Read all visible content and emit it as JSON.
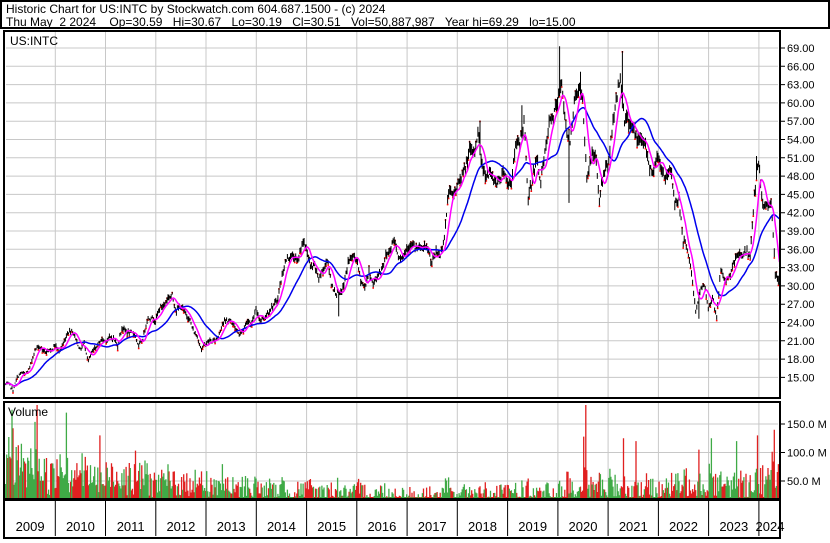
{
  "header": {
    "line1": "Historic Chart for US:INTC by Stockwatch.com 604.687.1500 - (c) 2024",
    "quote": {
      "date": "Thu May  2 2024",
      "open": "Op=30.59",
      "high": "Hi=30.67",
      "low": "Lo=30.19",
      "close": "Cl=30.51",
      "volume": "Vol=50,887,987",
      "year_high": "Year hi=69.29",
      "year_low": "lo=15.00"
    }
  },
  "price_panel": {
    "symbol_label": "US:INTC"
  },
  "volume_panel": {
    "label": "Volume"
  },
  "chart_data": {
    "type": "ohlc+volume",
    "symbol": "US:INTC",
    "title": "Historic Chart for US:INTC",
    "x_year_labels": [
      "2009",
      "2010",
      "2011",
      "2012",
      "2013",
      "2014",
      "2015",
      "2016",
      "2017",
      "2018",
      "2019",
      "2020",
      "2021",
      "2022",
      "2023",
      "2024"
    ],
    "price_axis_tick_labels": [
      "69.00",
      "66.00",
      "63.00",
      "60.00",
      "57.00",
      "54.00",
      "51.00",
      "48.00",
      "45.00",
      "42.00",
      "39.00",
      "36.00",
      "33.00",
      "30.00",
      "27.00",
      "24.00",
      "21.00",
      "18.00",
      "15.00"
    ],
    "price_axis_tick_values": [
      69,
      66,
      63,
      60,
      57,
      54,
      51,
      48,
      45,
      42,
      39,
      36,
      33,
      30,
      27,
      24,
      21,
      18,
      15
    ],
    "volume_axis_tick_labels": [
      "150.0 M",
      "100.0 M",
      "50.0 M"
    ],
    "volume_axis_tick_values": [
      150,
      100,
      50
    ],
    "start": {
      "year": 2009,
      "month": 1
    },
    "end": {
      "year": 2024,
      "month": 5
    },
    "monthly_close": [
      13.9,
      12.9,
      15.0,
      15.8,
      15.5,
      16.5,
      19.1,
      20.2,
      19.6,
      19.1,
      19.3,
      20.4,
      19.2,
      20.5,
      22.3,
      22.8,
      21.4,
      19.5,
      20.6,
      17.7,
      19.2,
      20.1,
      21.2,
      21.0,
      21.5,
      21.4,
      20.2,
      23.2,
      22.5,
      22.2,
      22.3,
      20.1,
      21.3,
      24.5,
      24.9,
      24.3,
      26.4,
      26.8,
      28.1,
      28.4,
      25.9,
      26.7,
      25.6,
      24.8,
      22.7,
      21.6,
      19.6,
      20.6,
      21.0,
      20.9,
      21.8,
      23.9,
      24.3,
      24.2,
      23.3,
      22.0,
      22.9,
      24.4,
      23.8,
      26.0,
      24.5,
      24.8,
      25.8,
      26.7,
      27.4,
      30.9,
      33.9,
      34.9,
      34.8,
      34.0,
      37.2,
      36.3,
      33.0,
      33.2,
      31.3,
      32.5,
      34.5,
      30.4,
      28.9,
      28.5,
      30.1,
      33.9,
      34.8,
      34.5,
      31.0,
      29.7,
      32.3,
      30.3,
      31.6,
      32.8,
      34.9,
      35.9,
      37.8,
      34.9,
      34.7,
      36.3,
      36.8,
      36.2,
      36.1,
      36.2,
      36.1,
      33.7,
      35.5,
      35.0,
      38.1,
      45.5,
      44.8,
      46.2,
      48.1,
      49.3,
      52.1,
      51.6,
      55.2,
      49.7,
      48.1,
      48.3,
      47.3,
      46.9,
      49.3,
      46.9,
      47.1,
      52.9,
      53.7,
      57.0,
      44.1,
      47.9,
      50.6,
      47.4,
      51.5,
      56.5,
      58.0,
      59.9,
      63.9,
      55.5,
      54.1,
      60.0,
      62.8,
      59.9,
      47.7,
      51.0,
      51.8,
      44.3,
      48.4,
      49.8,
      55.2,
      60.8,
      64.0,
      57.5,
      57.1,
      56.1,
      53.7,
      54.0,
      53.3,
      49.0,
      49.2,
      51.5,
      48.8,
      47.7,
      49.6,
      43.6,
      44.4,
      37.4,
      36.3,
      31.9,
      25.8,
      29.1,
      30.2,
      26.4,
      28.3,
      24.9,
      32.7,
      31.0,
      31.4,
      33.4,
      35.6,
      35.1,
      35.5,
      35.3,
      44.6,
      50.3,
      43.0,
      43.1,
      44.2,
      31.9,
      30.5
    ],
    "monthly_volume_m": [
      80,
      95,
      90,
      75,
      70,
      65,
      85,
      100,
      70,
      60,
      55,
      55,
      70,
      90,
      80,
      60,
      75,
      70,
      65,
      60,
      55,
      52,
      50,
      45,
      55,
      60,
      55,
      70,
      60,
      55,
      50,
      65,
      60,
      55,
      50,
      45,
      50,
      45,
      50,
      45,
      50,
      45,
      40,
      42,
      55,
      50,
      46,
      40,
      45,
      40,
      44,
      50,
      40,
      38,
      36,
      34,
      38,
      42,
      36,
      40,
      38,
      34,
      32,
      36,
      30,
      34,
      40,
      30,
      28,
      32,
      36,
      30,
      36,
      32,
      30,
      28,
      30,
      34,
      32,
      38,
      30,
      28,
      26,
      28,
      34,
      30,
      28,
      26,
      28,
      30,
      32,
      26,
      24,
      30,
      26,
      24,
      28,
      24,
      22,
      24,
      26,
      28,
      24,
      22,
      26,
      36,
      30,
      26,
      32,
      28,
      32,
      34,
      28,
      26,
      32,
      24,
      22,
      26,
      28,
      30,
      28,
      34,
      26,
      32,
      36,
      26,
      28,
      24,
      22,
      32,
      24,
      22,
      32,
      28,
      60,
      42,
      30,
      28,
      85,
      40,
      34,
      46,
      40,
      30,
      48,
      40,
      38,
      52,
      35,
      30,
      55,
      35,
      30,
      40,
      35,
      30,
      40,
      35,
      38,
      45,
      40,
      42,
      48,
      40,
      58,
      50,
      45,
      40,
      58,
      48,
      45,
      40,
      38,
      42,
      50,
      45,
      40,
      42,
      50,
      55,
      52,
      45,
      48,
      72,
      60
    ],
    "high_overrides": {
      "113": 57.1,
      "123": 59.6,
      "132": 69.3,
      "137": 65.1,
      "147": 68.5,
      "179": 51.3
    },
    "low_overrides": {
      "79": 25.0,
      "134": 43.6,
      "165": 24.6,
      "184": 30.2
    },
    "volume_spikes": [
      {
        "month": 1,
        "peak": 175,
        "dir": "up"
      },
      {
        "month": 7,
        "peak": 185,
        "dir": "down"
      },
      {
        "month": 14,
        "peak": 170,
        "dir": "up"
      },
      {
        "month": 22,
        "peak": 130,
        "dir": "down"
      },
      {
        "month": 138,
        "peak": 190,
        "dir": "down"
      },
      {
        "month": 147,
        "peak": 125,
        "dir": "down"
      },
      {
        "month": 150,
        "peak": 120,
        "dir": "down"
      },
      {
        "month": 165,
        "peak": 105,
        "dir": "down"
      },
      {
        "month": 168,
        "peak": 125,
        "dir": "up"
      },
      {
        "month": 174,
        "peak": 120,
        "dir": "up"
      },
      {
        "month": 179,
        "peak": 130,
        "dir": "down"
      },
      {
        "month": 183,
        "peak": 140,
        "dir": "down"
      }
    ]
  },
  "colors": {
    "price_bar": "#000000",
    "close_tick": "#ff0000",
    "ma_fast": "#ff00ff",
    "ma_slow": "#0000ee",
    "volume_up": "#3faa46",
    "volume_down": "#e02020",
    "grid": "#c8c8c8",
    "border": "#000000",
    "background": "#ffffff"
  }
}
